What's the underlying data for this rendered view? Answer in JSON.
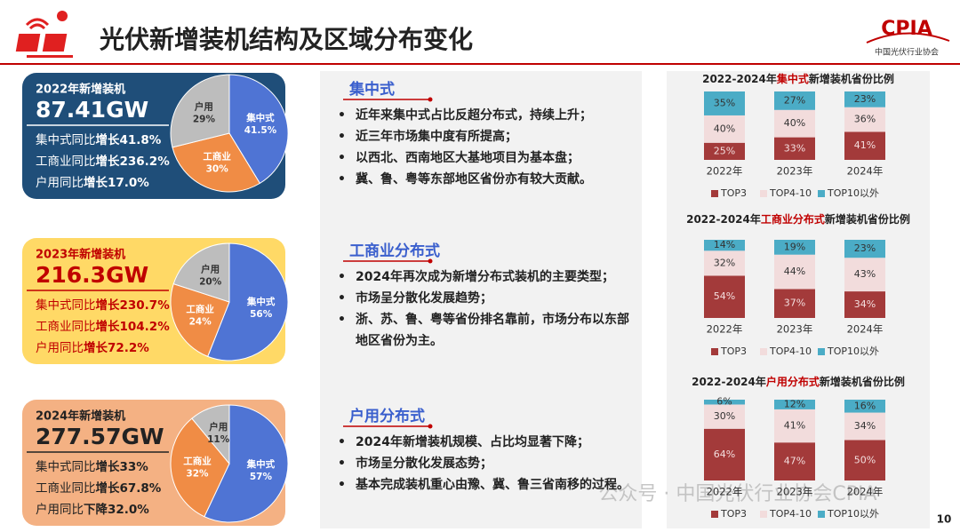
{
  "header": {
    "title": "光伏新增装机结构及区域分布变化",
    "logo": "CPIA",
    "logo_sub": "中国光伏行业协会"
  },
  "cards": [
    {
      "heading": "2022年新增装机",
      "total": "87.41GW",
      "lines": [
        [
          "集中式同比",
          "增长41.8%"
        ],
        [
          "工商业同比",
          "增长236.2%"
        ],
        [
          "户用同比",
          "增长17.0%"
        ]
      ]
    },
    {
      "heading": "2023年新增装机",
      "total": "216.3GW",
      "lines": [
        [
          "集中式同比",
          "增长230.7%"
        ],
        [
          "工商业同比",
          "增长104.2%"
        ],
        [
          "户用同比",
          "增长72.2%"
        ]
      ]
    },
    {
      "heading": "2024年新增装机",
      "total": "277.57GW",
      "lines": [
        [
          "集中式同比",
          "增长33%"
        ],
        [
          "工商业同比",
          "增长67.8%"
        ],
        [
          "户用同比",
          "下降32.0%"
        ]
      ]
    }
  ],
  "sections": [
    {
      "heading": "集中式",
      "bullets": [
        "近年来集中式占比反超分布式，持续上升；",
        "近三年市场集中度有所提高；",
        "以西北、西南地区大基地项目为基本盘；",
        "冀、鲁、粤等东部地区省份亦有较大贡献。"
      ]
    },
    {
      "heading": "工商业分布式",
      "bullets": [
        "2024年再次成为新增分布式装机的主要类型；",
        "市场呈分散化发展趋势；",
        "浙、苏、鲁、粤等省份排名靠前，市场分布以东部地区省份为主。"
      ]
    },
    {
      "heading": "户用分布式",
      "bullets": [
        "2024年新增装机规模、占比均显著下降；",
        "市场呈分散化发展态势；",
        "基本完成装机重心由豫、冀、鲁三省南移的过程。"
      ]
    }
  ],
  "chart_data": [
    {
      "type": "pie",
      "categories": [
        "集中式",
        "工商业",
        "户用"
      ],
      "values": [
        41.5,
        30,
        29
      ],
      "value_labels": [
        "41.5%",
        "30%",
        "29%"
      ],
      "colors": [
        "#4f74d4",
        "#f08c45",
        "#bdbdbd"
      ]
    },
    {
      "type": "pie",
      "categories": [
        "集中式",
        "工商业",
        "户用"
      ],
      "values": [
        56,
        24,
        20
      ],
      "value_labels": [
        "56%",
        "24%",
        "20%"
      ],
      "colors": [
        "#4f74d4",
        "#f08c45",
        "#bdbdbd"
      ]
    },
    {
      "type": "pie",
      "categories": [
        "集中式",
        "工商业",
        "户用"
      ],
      "values": [
        57,
        32,
        11
      ],
      "value_labels": [
        "57%",
        "32%",
        "11%"
      ],
      "colors": [
        "#4f74d4",
        "#f08c45",
        "#bdbdbd"
      ]
    },
    {
      "type": "bar",
      "stacked": true,
      "title": [
        "2022-2024年",
        "集中式",
        "新增装机省份比例"
      ],
      "categories": [
        "2022年",
        "2023年",
        "2024年"
      ],
      "ylim": [
        0,
        100
      ],
      "legend": "bottom",
      "series": [
        {
          "name": "TOP3",
          "color": "#a33a3a",
          "values": [
            25,
            33,
            41
          ],
          "value_labels": [
            "25%",
            "33%",
            "41%"
          ]
        },
        {
          "name": "TOP4-10",
          "color": "#f2dcdc",
          "values": [
            40,
            40,
            36
          ],
          "value_labels": [
            "40%",
            "40%",
            "36%"
          ]
        },
        {
          "name": "TOP10以外",
          "color": "#4bacc6",
          "values": [
            35,
            27,
            23
          ],
          "value_labels": [
            "35%",
            "27%",
            "23%"
          ]
        }
      ]
    },
    {
      "type": "bar",
      "stacked": true,
      "title": [
        "2022-2024年",
        "工商业分布式",
        "新增装机省份比例"
      ],
      "categories": [
        "2022年",
        "2023年",
        "2024年"
      ],
      "ylim": [
        0,
        100
      ],
      "legend": "bottom",
      "series": [
        {
          "name": "TOP3",
          "color": "#a33a3a",
          "values": [
            54,
            37,
            34
          ],
          "value_labels": [
            "54%",
            "37%",
            "34%"
          ]
        },
        {
          "name": "TOP4-10",
          "color": "#f2dcdc",
          "values": [
            32,
            44,
            43
          ],
          "value_labels": [
            "32%",
            "44%",
            "43%"
          ]
        },
        {
          "name": "TOP10以外",
          "color": "#4bacc6",
          "values": [
            14,
            19,
            23
          ],
          "value_labels": [
            "14%",
            "19%",
            "23%"
          ]
        }
      ]
    },
    {
      "type": "bar",
      "stacked": true,
      "title": [
        "2022-2024年",
        "户用分布式",
        "新增装机省份比例"
      ],
      "categories": [
        "2022年",
        "2023年",
        "2024年"
      ],
      "ylim": [
        0,
        100
      ],
      "legend": "bottom",
      "series": [
        {
          "name": "TOP3",
          "color": "#a33a3a",
          "values": [
            64,
            47,
            50
          ],
          "value_labels": [
            "64%",
            "47%",
            "50%"
          ]
        },
        {
          "name": "TOP4-10",
          "color": "#f2dcdc",
          "values": [
            30,
            41,
            34
          ],
          "value_labels": [
            "30%",
            "41%",
            "34%"
          ]
        },
        {
          "name": "TOP10以外",
          "color": "#4bacc6",
          "values": [
            6,
            12,
            16
          ],
          "value_labels": [
            "6%",
            "12%",
            "16%"
          ]
        }
      ]
    }
  ],
  "footer": {
    "watermark": "公众号 · 中国光伏行业协会CPIA",
    "page": "10"
  }
}
